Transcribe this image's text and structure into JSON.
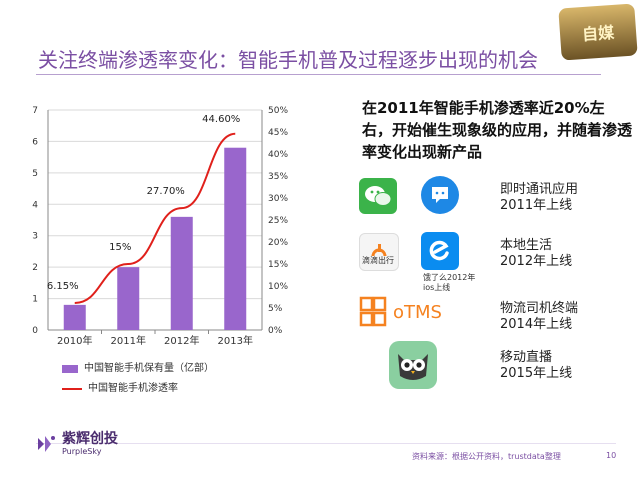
{
  "slide": {
    "title": "关注终端渗透率变化：智能手机普及过程逐步出现的机会",
    "badge_text": "自媒",
    "page_number": "10",
    "source": "资料来源：根据公开资料，trustdata整理"
  },
  "logo": {
    "name_cn": "紫辉创投",
    "name_en": "PurpleSky"
  },
  "chart_data": {
    "type": "bar",
    "categories": [
      "2010年",
      "2011年",
      "2012年",
      "2013年"
    ],
    "series": [
      {
        "name": "中国智能手机保有量（亿部）",
        "type": "bar",
        "axis": "left",
        "values": [
          0.8,
          2.0,
          3.6,
          5.8
        ],
        "color": "#9966cc"
      },
      {
        "name": "中国智能手机渗透率",
        "type": "line",
        "axis": "right",
        "values": [
          6.15,
          15,
          27.7,
          44.6
        ],
        "labels": [
          "6.15%",
          "15%",
          "27.70%",
          "44.60%"
        ],
        "color": "#e0201b"
      }
    ],
    "left_axis": {
      "min": 0,
      "max": 7,
      "ticks": [
        "0",
        "1",
        "2",
        "3",
        "4",
        "5",
        "6",
        "7"
      ]
    },
    "right_axis": {
      "min": 0,
      "max": 50,
      "ticks": [
        "0%",
        "5%",
        "10%",
        "15%",
        "20%",
        "25%",
        "30%",
        "35%",
        "40%",
        "45%",
        "50%"
      ]
    },
    "grid": true,
    "legend_position": "bottom-left"
  },
  "headline": "在2011年智能手机渗透率近20%左右，开始催生现象级的应用，并随着渗透率变化出现新产品",
  "apps": [
    {
      "category": "即时通讯应用",
      "year_text": "2011年上线",
      "icons": [
        "wechat-icon",
        "qq-bubble-icon"
      ]
    },
    {
      "category": "本地生活",
      "year_text": "2012年上线",
      "icons": [
        "didi-icon",
        "eleme-icon"
      ],
      "captions": [
        "滴滴出行",
        "饿了么2012年",
        "ios上线"
      ]
    },
    {
      "category": "物流司机终端",
      "year_text": "2014年上线",
      "icons": [
        "otms-icon"
      ],
      "logo_text": "oTMS"
    },
    {
      "category": "移动直播",
      "year_text": "2015年上线",
      "icons": [
        "owl-icon"
      ]
    }
  ]
}
